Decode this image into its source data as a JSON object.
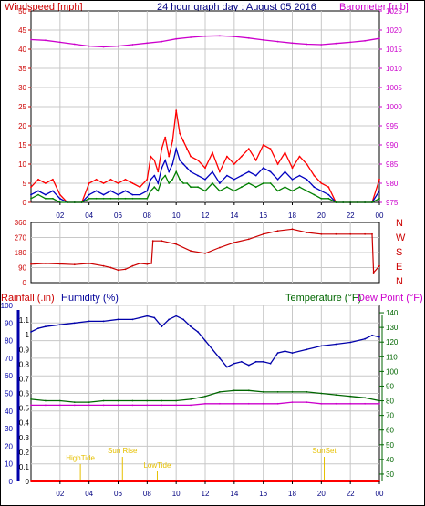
{
  "chart_data": [
    {
      "type": "line",
      "title": "24 hour graph day : August 05 2016",
      "ylabel_left": "Windspeed [mph]",
      "ylabel_right": "Barometer [mb]",
      "x_ticks": [
        "02",
        "04",
        "06",
        "08",
        "10",
        "12",
        "14",
        "16",
        "18",
        "20",
        "22",
        "00"
      ],
      "x_range_hours": [
        0,
        24
      ],
      "ylim_left": [
        0,
        50
      ],
      "ylim_right": [
        975,
        1025
      ],
      "left_ticks": [
        0,
        5,
        10,
        15,
        20,
        25,
        30,
        35,
        40,
        45,
        50
      ],
      "right_ticks": [
        975,
        980,
        985,
        990,
        995,
        1000,
        1005,
        1010,
        1015,
        1020,
        1025
      ],
      "grid": true,
      "colors": {
        "gust": "#ff0000",
        "windspeed": "#0000c0",
        "avg": "#008000",
        "barometer": "#cc00cc"
      },
      "series": [
        {
          "key": "barometer",
          "axis": "right",
          "x": [
            0,
            1,
            2,
            3,
            4,
            5,
            6,
            7,
            8,
            9,
            10,
            11,
            12,
            13,
            14,
            15,
            16,
            17,
            18,
            19,
            20,
            21,
            22,
            23,
            24
          ],
          "values": [
            1017.5,
            1017.3,
            1016.8,
            1016.3,
            1015.8,
            1015.6,
            1015.8,
            1016.2,
            1016.6,
            1017.0,
            1017.7,
            1018.1,
            1018.4,
            1018.5,
            1018.3,
            1017.9,
            1017.4,
            1017.0,
            1016.6,
            1016.3,
            1016.2,
            1016.5,
            1016.8,
            1017.2,
            1017.8
          ]
        },
        {
          "key": "gust",
          "axis": "left",
          "x": [
            0,
            0.5,
            1,
            1.5,
            2,
            2.5,
            3,
            3.5,
            4,
            4.5,
            5,
            5.5,
            6,
            6.5,
            7,
            7.5,
            8,
            8.25,
            8.5,
            8.75,
            9,
            9.25,
            9.5,
            9.75,
            10,
            10.25,
            10.5,
            10.75,
            11,
            11.5,
            12,
            12.5,
            13,
            13.5,
            14,
            14.5,
            15,
            15.5,
            16,
            16.5,
            17,
            17.5,
            18,
            18.5,
            19,
            19.5,
            20,
            20.5,
            21,
            21.5,
            22,
            22.5,
            23,
            23.5,
            24
          ],
          "values": [
            4,
            6,
            5,
            6,
            2,
            0,
            0,
            0,
            5,
            6,
            5,
            6,
            5,
            6,
            5,
            4,
            6,
            12,
            11,
            8,
            14,
            17,
            12,
            16,
            24,
            18,
            16,
            14,
            12,
            11,
            9,
            13,
            8,
            12,
            10,
            12,
            14,
            11,
            15,
            14,
            10,
            13,
            9,
            12,
            10,
            7,
            5,
            4,
            0,
            0,
            0,
            0,
            0,
            0,
            6
          ]
        },
        {
          "key": "windspeed",
          "axis": "left",
          "x": [
            0,
            0.5,
            1,
            1.5,
            2,
            2.5,
            3,
            3.5,
            4,
            4.5,
            5,
            5.5,
            6,
            6.5,
            7,
            7.5,
            8,
            8.25,
            8.5,
            8.75,
            9,
            9.25,
            9.5,
            9.75,
            10,
            10.25,
            10.5,
            10.75,
            11,
            11.5,
            12,
            12.5,
            13,
            13.5,
            14,
            14.5,
            15,
            15.5,
            16,
            16.5,
            17,
            17.5,
            18,
            18.5,
            19,
            19.5,
            20,
            20.5,
            21,
            21.5,
            22,
            22.5,
            23,
            23.5,
            24
          ],
          "values": [
            2,
            3,
            2,
            3,
            1,
            0,
            0,
            0,
            2,
            3,
            2,
            3,
            2,
            3,
            2,
            2,
            3,
            6,
            7,
            5,
            9,
            11,
            8,
            10,
            14,
            11,
            10,
            9,
            8,
            7,
            6,
            8,
            5,
            7,
            6,
            7,
            8,
            7,
            9,
            8,
            6,
            8,
            6,
            7,
            6,
            4,
            3,
            2,
            0,
            0,
            0,
            0,
            0,
            0,
            3
          ]
        },
        {
          "key": "avg",
          "axis": "left",
          "x": [
            0,
            0.5,
            1,
            1.5,
            2,
            2.5,
            3,
            3.5,
            4,
            4.5,
            5,
            5.5,
            6,
            6.5,
            7,
            7.5,
            8,
            8.25,
            8.5,
            8.75,
            9,
            9.25,
            9.5,
            9.75,
            10,
            10.25,
            10.5,
            10.75,
            11,
            11.5,
            12,
            12.5,
            13,
            13.5,
            14,
            14.5,
            15,
            15.5,
            16,
            16.5,
            17,
            17.5,
            18,
            18.5,
            19,
            19.5,
            20,
            20.5,
            21,
            21.5,
            22,
            22.5,
            23,
            23.5,
            24
          ],
          "values": [
            1,
            2,
            1,
            1,
            0,
            0,
            0,
            0,
            1,
            1,
            1,
            1,
            1,
            1,
            1,
            1,
            1,
            3,
            4,
            3,
            6,
            7,
            5,
            6,
            8,
            6,
            5,
            5,
            4,
            4,
            3,
            5,
            3,
            4,
            3,
            4,
            5,
            4,
            5,
            5,
            3,
            4,
            3,
            4,
            3,
            2,
            1,
            1,
            0,
            0,
            0,
            0,
            0,
            0,
            1
          ]
        }
      ]
    },
    {
      "type": "scatter",
      "ylabel_right": [
        "N",
        "W",
        "S",
        "E",
        "N"
      ],
      "ylim": [
        0,
        360
      ],
      "left_ticks": [
        0,
        90,
        180,
        270,
        360
      ],
      "x_range_hours": [
        0,
        24
      ],
      "colors": {
        "direction": "#cc0000"
      },
      "series": [
        {
          "key": "direction",
          "x": [
            0,
            1,
            2,
            3,
            4,
            5,
            5.5,
            6,
            6.5,
            7,
            7.5,
            8,
            8.3,
            8.4,
            9,
            10,
            11,
            12,
            13,
            14,
            15,
            16,
            17,
            18,
            19,
            20,
            21,
            22,
            23,
            23.5,
            23.6,
            24
          ],
          "values": [
            110,
            115,
            112,
            108,
            115,
            100,
            90,
            75,
            80,
            100,
            115,
            110,
            115,
            250,
            250,
            230,
            190,
            175,
            210,
            240,
            260,
            290,
            310,
            320,
            300,
            290,
            290,
            290,
            290,
            290,
            60,
            100
          ]
        }
      ]
    },
    {
      "type": "line",
      "ylabel_left": "Rainfall (.in)",
      "ylabel_humidity": "Humidity (%)",
      "ylabel_temp": "Temperature (°F)",
      "ylabel_dew": "Dew Point (°F)",
      "x_ticks": [
        "02",
        "04",
        "06",
        "08",
        "10",
        "12",
        "14",
        "16",
        "18",
        "20",
        "22",
        "00"
      ],
      "x_range_hours": [
        0,
        24
      ],
      "humidity_ticks": [
        0,
        10,
        20,
        30,
        40,
        50,
        60,
        70,
        80,
        90,
        100
      ],
      "rain_ticks": [
        0,
        0.1,
        0.2,
        0.3,
        0.4,
        0.5,
        0.6,
        0.7,
        0.8,
        0.9,
        1,
        1.1
      ],
      "rain_tick_labels": [
        "0",
        "0.1",
        "0.2",
        "0.3",
        "0.4",
        "0.5",
        "0.6",
        "0.7",
        "0.8",
        "0.9",
        "1",
        "1.1"
      ],
      "temp_ticks": [
        30,
        40,
        50,
        60,
        70,
        80,
        90,
        100,
        110,
        120,
        130,
        140
      ],
      "ylim_humidity": [
        0,
        100
      ],
      "ylim_rain": [
        0,
        1.2
      ],
      "ylim_temp": [
        25,
        145
      ],
      "grid": true,
      "colors": {
        "humidity": "#0000aa",
        "temperature": "#006600",
        "dewpoint": "#cc00cc",
        "rainfall": "#ff0000",
        "event": "#e6c000"
      },
      "events": [
        {
          "label": "HighTide",
          "hour": 3.4
        },
        {
          "label": "Sun Rise",
          "hour": 6.3
        },
        {
          "label": "LowTide",
          "hour": 8.7
        },
        {
          "label": "SunSet",
          "hour": 20.2
        }
      ],
      "series": [
        {
          "key": "humidity",
          "axis": "humidity",
          "x": [
            0,
            0.5,
            1,
            2,
            3,
            4,
            5,
            6,
            7,
            7.5,
            8,
            8.5,
            9,
            9.5,
            10,
            10.5,
            11,
            11.5,
            12,
            12.5,
            13,
            13.5,
            14,
            14.5,
            15,
            15.5,
            16,
            16.5,
            17,
            17.5,
            18,
            19,
            20,
            21,
            22,
            23,
            23.5,
            24
          ],
          "values": [
            85,
            87,
            88,
            89,
            90,
            91,
            91,
            92,
            92,
            93,
            94,
            93,
            88,
            92,
            94,
            92,
            88,
            85,
            80,
            75,
            70,
            65,
            67,
            68,
            66,
            68,
            68,
            67,
            73,
            74,
            73,
            75,
            77,
            78,
            79,
            81,
            83,
            82
          ]
        },
        {
          "key": "temperature",
          "axis": "temp",
          "x": [
            0,
            1,
            2,
            3,
            4,
            5,
            6,
            7,
            8,
            9,
            10,
            11,
            12,
            13,
            14,
            15,
            16,
            17,
            18,
            19,
            20,
            21,
            22,
            23,
            24
          ],
          "values": [
            81,
            80,
            80,
            79,
            79,
            80,
            80,
            80,
            80,
            80,
            80,
            81,
            83,
            86,
            87,
            87,
            86,
            86,
            86,
            86,
            85,
            84,
            83,
            82,
            80
          ]
        },
        {
          "key": "dewpoint",
          "axis": "temp",
          "x": [
            0,
            1,
            2,
            3,
            4,
            5,
            6,
            7,
            8,
            9,
            10,
            11,
            12,
            13,
            14,
            15,
            16,
            17,
            18,
            19,
            20,
            21,
            22,
            23,
            24
          ],
          "values": [
            77,
            77,
            77,
            77,
            77,
            77,
            77,
            77,
            77,
            77,
            77,
            77,
            78,
            78,
            78,
            78,
            78,
            78,
            79,
            79,
            78,
            78,
            78,
            78,
            78
          ]
        },
        {
          "key": "rainfall",
          "axis": "rain",
          "x": [
            0,
            24
          ],
          "values": [
            0,
            0
          ]
        }
      ]
    }
  ]
}
